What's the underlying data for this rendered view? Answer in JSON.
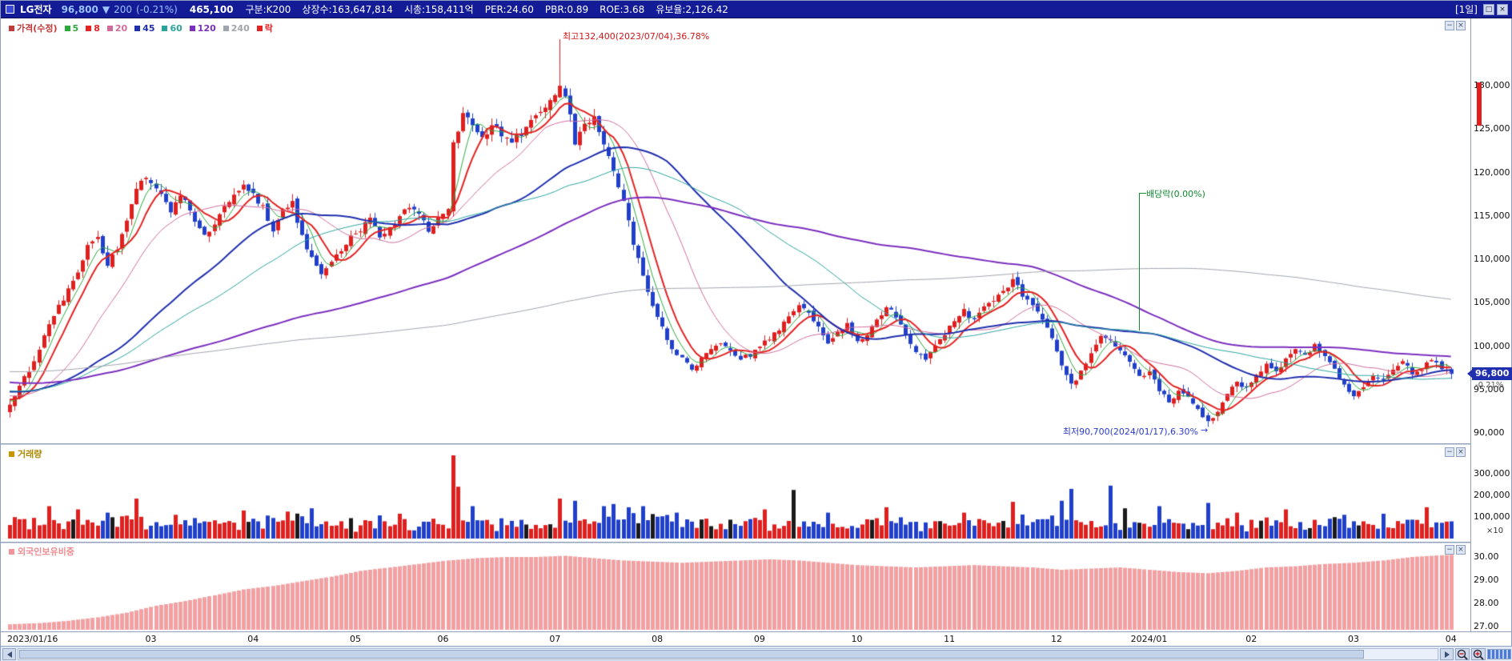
{
  "title_bar": {
    "symbol": "LG전자",
    "price": "96,800",
    "change_arrow": "▼",
    "change_value": "200",
    "change_percent": "(-0.21%)",
    "day_volume": "465,100",
    "stats": {
      "category": "구분:K200",
      "listed_shares": "상장수:163,647,814",
      "market_cap": "시총:158,411억",
      "per": "PER:24.60",
      "pbr": "PBR:0.89",
      "roe": "ROE:3.68",
      "reserve_ratio": "유보율:2,126.42"
    },
    "period": "[1일]"
  },
  "legend": {
    "items": [
      {
        "label": "가격(수정)",
        "color": "#c03a3a"
      },
      {
        "label": "5",
        "color": "#2ca83c"
      },
      {
        "label": "8",
        "color": "#e32222"
      },
      {
        "label": "20",
        "color": "#d06c9c"
      },
      {
        "label": "45",
        "color": "#1f2fae"
      },
      {
        "label": "60",
        "color": "#2aa39c"
      },
      {
        "label": "120",
        "color": "#7b2fbe"
      },
      {
        "label": "240",
        "color": "#a0a4ac"
      },
      {
        "label": "락",
        "color": "#e32222"
      }
    ]
  },
  "price_panel": {
    "high_label": "최고132,400(2023/07/04),36.78%",
    "low_label": "최저90,700(2024/01/17),6.30%",
    "dividend_label": "배당락(0.00%)",
    "price_badge": "96,800",
    "badge_percent": "-0.21%",
    "axis_labels": [
      "130,000",
      "125,000",
      "120,000",
      "115,000",
      "110,000",
      "105,000",
      "100,000",
      "95,000",
      "90,000"
    ]
  },
  "volume_panel": {
    "title": "거래량",
    "axis_labels": [
      "300,000",
      "200,000",
      "100,000"
    ],
    "unit": "×10",
    "color": "#b08800"
  },
  "foreign_panel": {
    "title": "외국인보유비중",
    "axis_labels": [
      "30.00",
      "29.00",
      "28.00",
      "27.00"
    ],
    "color": "#ee8d92"
  },
  "x_axis": {
    "labels": [
      "2023/01/16",
      "03",
      "04",
      "05",
      "06",
      "07",
      "08",
      "09",
      "10",
      "11",
      "12",
      "2024/01",
      "02",
      "03",
      "04"
    ]
  },
  "icons": {
    "panel_minimize": "−",
    "panel_close": "×",
    "window_restore": "□",
    "window_close": "×",
    "low_arrow": "→"
  },
  "chart_data": {
    "type": "candlestick",
    "period": "daily",
    "x_labels": [
      "2023/01/16",
      "03",
      "04",
      "05",
      "06",
      "07",
      "08",
      "09",
      "10",
      "11",
      "12",
      "2024/01",
      "02",
      "03",
      "04"
    ],
    "x_label_days": [
      0,
      29,
      50,
      71,
      89,
      112,
      133,
      154,
      174,
      193,
      215,
      234,
      255,
      276,
      296
    ],
    "days_total": 300,
    "candle_count": 297,
    "price_axis": {
      "min": 90000,
      "max": 130000,
      "tick": 5000
    },
    "price_close_anchors": [
      [
        0,
        93500
      ],
      [
        2,
        95500
      ],
      [
        4,
        97000
      ],
      [
        6,
        99500
      ],
      [
        8,
        102500
      ],
      [
        10,
        104500
      ],
      [
        12,
        106500
      ],
      [
        14,
        108500
      ],
      [
        16,
        111500
      ],
      [
        18,
        112500
      ],
      [
        20,
        109500
      ],
      [
        22,
        111000
      ],
      [
        24,
        114500
      ],
      [
        26,
        118000
      ],
      [
        28,
        119500
      ],
      [
        31,
        117500
      ],
      [
        33,
        115500
      ],
      [
        35,
        117500
      ],
      [
        38,
        114500
      ],
      [
        40,
        112500
      ],
      [
        42,
        114000
      ],
      [
        44,
        116000
      ],
      [
        46,
        117500
      ],
      [
        48,
        118500
      ],
      [
        50,
        117500
      ],
      [
        52,
        116000
      ],
      [
        54,
        113500
      ],
      [
        56,
        115500
      ],
      [
        58,
        116500
      ],
      [
        60,
        112500
      ],
      [
        62,
        110000
      ],
      [
        64,
        108500
      ],
      [
        66,
        109500
      ],
      [
        68,
        111000
      ],
      [
        70,
        112500
      ],
      [
        72,
        113500
      ],
      [
        74,
        114500
      ],
      [
        76,
        112500
      ],
      [
        78,
        113500
      ],
      [
        80,
        115000
      ],
      [
        82,
        116000
      ],
      [
        84,
        115000
      ],
      [
        86,
        113500
      ],
      [
        88,
        114500
      ],
      [
        90,
        115500
      ],
      [
        91,
        123500
      ],
      [
        93,
        126500
      ],
      [
        95,
        125500
      ],
      [
        97,
        124000
      ],
      [
        99,
        125500
      ],
      [
        101,
        124500
      ],
      [
        103,
        123500
      ],
      [
        105,
        124500
      ],
      [
        107,
        126000
      ],
      [
        109,
        127000
      ],
      [
        111,
        128500
      ],
      [
        113,
        129800
      ],
      [
        115,
        127000
      ],
      [
        116,
        123500
      ],
      [
        118,
        125500
      ],
      [
        120,
        126500
      ],
      [
        122,
        123500
      ],
      [
        124,
        120000
      ],
      [
        126,
        116500
      ],
      [
        128,
        112000
      ],
      [
        130,
        108000
      ],
      [
        132,
        104500
      ],
      [
        134,
        102000
      ],
      [
        136,
        99500
      ],
      [
        138,
        98500
      ],
      [
        140,
        97500
      ],
      [
        142,
        98500
      ],
      [
        144,
        99500
      ],
      [
        146,
        100500
      ],
      [
        148,
        99500
      ],
      [
        150,
        98500
      ],
      [
        152,
        99000
      ],
      [
        154,
        100000
      ],
      [
        156,
        101000
      ],
      [
        158,
        102000
      ],
      [
        160,
        103500
      ],
      [
        162,
        105000
      ],
      [
        164,
        104000
      ],
      [
        166,
        102000
      ],
      [
        168,
        100500
      ],
      [
        170,
        101500
      ],
      [
        172,
        102500
      ],
      [
        174,
        100500
      ],
      [
        176,
        101500
      ],
      [
        178,
        103000
      ],
      [
        180,
        104500
      ],
      [
        182,
        103500
      ],
      [
        184,
        101500
      ],
      [
        186,
        99500
      ],
      [
        188,
        98500
      ],
      [
        190,
        100000
      ],
      [
        192,
        101500
      ],
      [
        194,
        103000
      ],
      [
        196,
        104000
      ],
      [
        198,
        103000
      ],
      [
        200,
        104500
      ],
      [
        202,
        105500
      ],
      [
        204,
        106500
      ],
      [
        206,
        107500
      ],
      [
        208,
        106000
      ],
      [
        210,
        104500
      ],
      [
        212,
        103000
      ],
      [
        214,
        101000
      ],
      [
        216,
        98000
      ],
      [
        218,
        95500
      ],
      [
        220,
        97000
      ],
      [
        222,
        99000
      ],
      [
        224,
        101000
      ],
      [
        226,
        100500
      ],
      [
        228,
        99500
      ],
      [
        230,
        98000
      ],
      [
        232,
        96500
      ],
      [
        234,
        97000
      ],
      [
        236,
        95000
      ],
      [
        238,
        93500
      ],
      [
        240,
        95000
      ],
      [
        242,
        94000
      ],
      [
        244,
        92500
      ],
      [
        246,
        91200
      ],
      [
        248,
        92500
      ],
      [
        250,
        94500
      ],
      [
        252,
        96000
      ],
      [
        254,
        95000
      ],
      [
        256,
        96500
      ],
      [
        258,
        98000
      ],
      [
        260,
        97000
      ],
      [
        262,
        98500
      ],
      [
        264,
        99500
      ],
      [
        266,
        99000
      ],
      [
        268,
        100000
      ],
      [
        270,
        99000
      ],
      [
        272,
        97500
      ],
      [
        274,
        95500
      ],
      [
        276,
        94500
      ],
      [
        278,
        95500
      ],
      [
        280,
        96500
      ],
      [
        282,
        96000
      ],
      [
        284,
        97500
      ],
      [
        286,
        98000
      ],
      [
        288,
        97000
      ],
      [
        290,
        97500
      ],
      [
        292,
        98500
      ],
      [
        294,
        97200
      ],
      [
        296,
        96800
      ]
    ],
    "high_marker": {
      "day": 113,
      "price": 132400,
      "date": "2023/07/04",
      "pct_from_current": "36.78%"
    },
    "low_marker": {
      "day": 246,
      "price": 90700,
      "date": "2024/01/17",
      "pct_from_current": "6.30%"
    },
    "ex_dividend_marker": {
      "day": 232,
      "pct": "0.00%"
    },
    "last_close": 96800,
    "last_change": -200,
    "last_change_percent": "-0.21%",
    "ma_lines": [
      {
        "period": 5,
        "color": "#2ca83c",
        "width": 1
      },
      {
        "period": 8,
        "color": "#e32222",
        "width": 2
      },
      {
        "period": 20,
        "color": "#d06c9c",
        "width": 1
      },
      {
        "period": 45,
        "color": "#1f2fae",
        "width": 2
      },
      {
        "period": 60,
        "color": "#2aa39c",
        "width": 1
      },
      {
        "period": 120,
        "color": "#7b2fbe",
        "width": 2
      },
      {
        "period": 240,
        "color": "#a0a4ac",
        "width": 1
      }
    ],
    "volume_axis": {
      "ticks": [
        300000,
        200000,
        100000
      ],
      "unit_multiplier": "×10"
    },
    "volume_spikes": [
      [
        8,
        150000
      ],
      [
        14,
        135000
      ],
      [
        20,
        120000
      ],
      [
        26,
        185000
      ],
      [
        34,
        110000
      ],
      [
        48,
        130000
      ],
      [
        57,
        125000
      ],
      [
        62,
        140000
      ],
      [
        80,
        115000
      ],
      [
        91,
        385000
      ],
      [
        92,
        240000
      ],
      [
        95,
        150000
      ],
      [
        113,
        185000
      ],
      [
        116,
        175000
      ],
      [
        122,
        150000
      ],
      [
        124,
        160000
      ],
      [
        127,
        145000
      ],
      [
        130,
        150000
      ],
      [
        137,
        120000
      ],
      [
        155,
        135000
      ],
      [
        161,
        225000
      ],
      [
        168,
        120000
      ],
      [
        180,
        145000
      ],
      [
        196,
        120000
      ],
      [
        206,
        170000
      ],
      [
        216,
        175000
      ],
      [
        218,
        230000
      ],
      [
        226,
        245000
      ],
      [
        229,
        140000
      ],
      [
        236,
        150000
      ],
      [
        246,
        165000
      ],
      [
        252,
        120000
      ],
      [
        262,
        135000
      ],
      [
        274,
        110000
      ],
      [
        282,
        115000
      ],
      [
        291,
        145000
      ]
    ],
    "foreign_axis": {
      "ticks": [
        30,
        29,
        28,
        27
      ]
    },
    "foreign_ownership_anchors": [
      [
        0,
        27.1
      ],
      [
        6,
        27.15
      ],
      [
        12,
        27.25
      ],
      [
        18,
        27.4
      ],
      [
        24,
        27.6
      ],
      [
        30,
        27.9
      ],
      [
        36,
        28.1
      ],
      [
        42,
        28.35
      ],
      [
        48,
        28.6
      ],
      [
        54,
        28.75
      ],
      [
        60,
        28.95
      ],
      [
        66,
        29.15
      ],
      [
        72,
        29.4
      ],
      [
        78,
        29.55
      ],
      [
        84,
        29.7
      ],
      [
        90,
        29.85
      ],
      [
        96,
        29.95
      ],
      [
        102,
        30.0
      ],
      [
        108,
        30.0
      ],
      [
        114,
        30.05
      ],
      [
        120,
        29.95
      ],
      [
        126,
        29.85
      ],
      [
        132,
        29.8
      ],
      [
        138,
        29.75
      ],
      [
        144,
        29.8
      ],
      [
        150,
        29.85
      ],
      [
        156,
        29.9
      ],
      [
        162,
        29.85
      ],
      [
        168,
        29.75
      ],
      [
        174,
        29.65
      ],
      [
        180,
        29.6
      ],
      [
        186,
        29.55
      ],
      [
        192,
        29.6
      ],
      [
        198,
        29.65
      ],
      [
        204,
        29.6
      ],
      [
        210,
        29.55
      ],
      [
        216,
        29.45
      ],
      [
        222,
        29.5
      ],
      [
        228,
        29.55
      ],
      [
        234,
        29.45
      ],
      [
        240,
        29.35
      ],
      [
        246,
        29.3
      ],
      [
        252,
        29.4
      ],
      [
        258,
        29.55
      ],
      [
        264,
        29.6
      ],
      [
        270,
        29.7
      ],
      [
        276,
        29.75
      ],
      [
        282,
        29.85
      ],
      [
        288,
        30.0
      ],
      [
        292,
        30.05
      ],
      [
        296,
        30.1
      ]
    ],
    "colors": {
      "up_candle": "#e01f1f",
      "down_candle": "#2040cc",
      "foreign_bar": "#f2a0a2",
      "volume_black": "#1a1a1a"
    }
  }
}
